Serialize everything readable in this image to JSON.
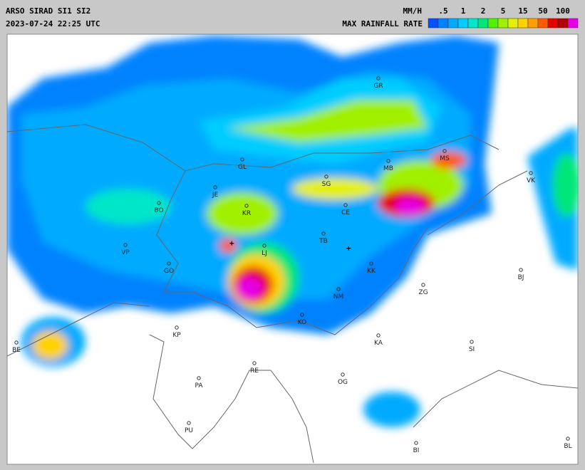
{
  "header": {
    "title": "ARSO SIRAD SI1 SI2",
    "timestamp": "2023-07-24 22:25 UTC"
  },
  "legend": {
    "unit": "MM/H",
    "title": "MAX RAINFALL RATE",
    "labels": [
      ".5",
      "1",
      "2",
      "5",
      "15",
      "50",
      "100"
    ],
    "colors": [
      "#0050ff",
      "#0082ff",
      "#00aaff",
      "#00cdff",
      "#00e6c8",
      "#00e678",
      "#50f000",
      "#a0f000",
      "#e6f000",
      "#ffd200",
      "#ffa000",
      "#ff5a00",
      "#e60000",
      "#b40000",
      "#e600e6"
    ]
  },
  "places": [
    "GR",
    "GL",
    "KR",
    "BO",
    "VP",
    "GO",
    "JE",
    "SG",
    "MB",
    "CE",
    "TB",
    "LJ",
    "KK",
    "NM",
    "ZG",
    "BJ",
    "VK",
    "MS",
    "KO",
    "KP",
    "KA",
    "SI",
    "RE",
    "OG",
    "PA",
    "PU",
    "BI",
    "BL",
    "BE"
  ]
}
